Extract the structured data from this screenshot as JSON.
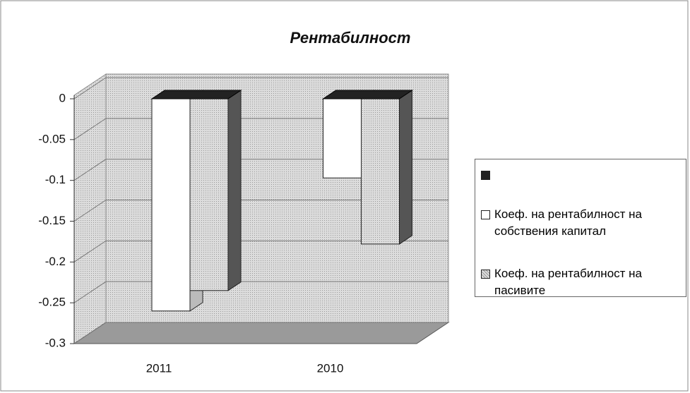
{
  "chart_data": {
    "type": "bar3d",
    "title": "Рентабилност",
    "categories": [
      "2011",
      "2010"
    ],
    "series": [
      {
        "color": "#222222",
        "values": [
          0,
          0
        ]
      },
      {
        "name": "Коеф. на рентабилност на собствения капитал",
        "color": "#ffffff",
        "values": [
          -0.26,
          -0.097
        ]
      },
      {
        "name": "Коеф. на рентабилност на пасивите",
        "color": "#c4c4c4",
        "values": [
          -0.235,
          -0.178
        ]
      }
    ],
    "ylim": [
      -0.3,
      0
    ],
    "yticks": [
      0,
      -0.05,
      -0.1,
      -0.15,
      -0.2,
      -0.25,
      -0.3
    ],
    "grid": true,
    "legend": "right"
  }
}
